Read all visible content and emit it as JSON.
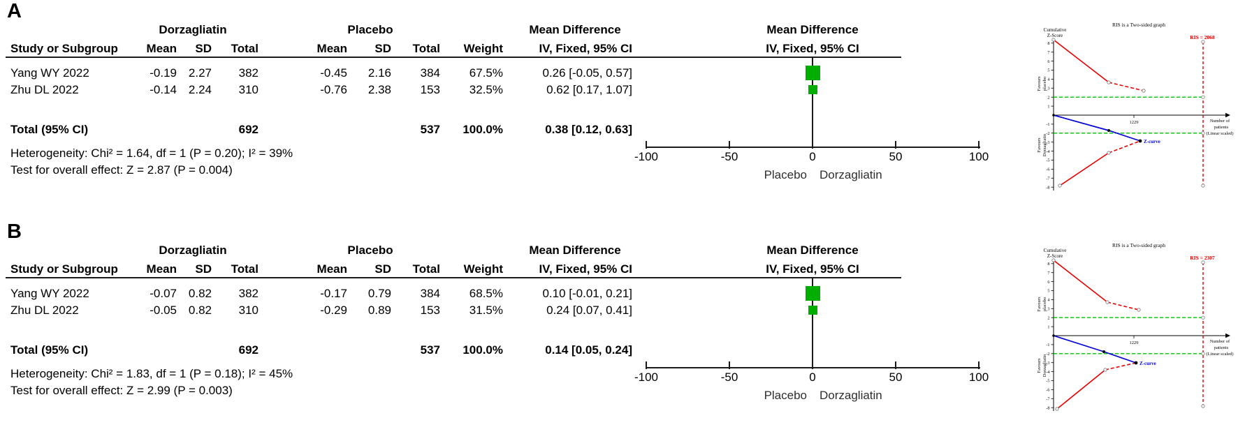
{
  "panelA": {
    "label": "A",
    "table": {
      "groups": {
        "treatment": "Dorzagliatin",
        "control": "Placebo",
        "effect": "Mean Difference"
      },
      "columns": [
        "Study or Subgroup",
        "Mean",
        "SD",
        "Total",
        "Mean",
        "SD",
        "Total",
        "Weight",
        "IV, Fixed, 95% CI"
      ],
      "rows": [
        {
          "study": "Yang WY 2022",
          "t_mean": "-0.19",
          "t_sd": "2.27",
          "t_total": "382",
          "c_mean": "-0.45",
          "c_sd": "2.16",
          "c_total": "384",
          "weight": "67.5%",
          "ci": "0.26 [-0.05, 0.57]"
        },
        {
          "study": "Zhu DL 2022",
          "t_mean": "-0.14",
          "t_sd": "2.24",
          "t_total": "310",
          "c_mean": "-0.76",
          "c_sd": "2.38",
          "c_total": "153",
          "weight": "32.5%",
          "ci": "0.62 [0.17, 1.07]"
        }
      ],
      "total": {
        "label": "Total (95% CI)",
        "t_total": "692",
        "c_total": "537",
        "weight": "100.0%",
        "ci": "0.38 [0.12, 0.63]"
      },
      "heterogeneity": "Heterogeneity: Chi² = 1.64, df = 1 (P = 0.20); I² = 39%",
      "overall": "Test for overall effect: Z = 2.87 (P = 0.004)"
    },
    "forest": {
      "header_line1": "Mean Difference",
      "header_line2": "IV, Fixed, 95% CI",
      "axis_ticks": [
        "-100",
        "-50",
        "0",
        "50",
        "100"
      ],
      "left_label": "Placebo",
      "right_label": "Dorzagliatin"
    },
    "tsa": {
      "title": "RIS is a Two-sided graph",
      "ris_label": "RIS = 2068",
      "y_label_line1": "Cumulative",
      "y_label_line2": "Z-Score",
      "x_tick": "1229",
      "x_label_lines": [
        "Number of",
        "patients",
        "(Linear scaled)"
      ],
      "z_curve_label": "Z-curve",
      "favours_top": [
        "Favours",
        "placebo"
      ],
      "favours_bottom": [
        "Favours",
        "Dorzagliatin"
      ]
    }
  },
  "panelB": {
    "label": "B",
    "table": {
      "groups": {
        "treatment": "Dorzagliatin",
        "control": "Placebo",
        "effect": "Mean Difference"
      },
      "columns": [
        "Study or Subgroup",
        "Mean",
        "SD",
        "Total",
        "Mean",
        "SD",
        "Total",
        "Weight",
        "IV, Fixed, 95% CI"
      ],
      "rows": [
        {
          "study": "Yang WY 2022",
          "t_mean": "-0.07",
          "t_sd": "0.82",
          "t_total": "382",
          "c_mean": "-0.17",
          "c_sd": "0.79",
          "c_total": "384",
          "weight": "68.5%",
          "ci": "0.10 [-0.01, 0.21]"
        },
        {
          "study": "Zhu DL 2022",
          "t_mean": "-0.05",
          "t_sd": "0.82",
          "t_total": "310",
          "c_mean": "-0.29",
          "c_sd": "0.89",
          "c_total": "153",
          "weight": "31.5%",
          "ci": "0.24 [0.07, 0.41]"
        }
      ],
      "total": {
        "label": "Total (95% CI)",
        "t_total": "692",
        "c_total": "537",
        "weight": "100.0%",
        "ci": "0.14 [0.05, 0.24]"
      },
      "heterogeneity": "Heterogeneity: Chi² = 1.83, df = 1 (P = 0.18); I² = 45%",
      "overall": "Test for overall effect: Z = 2.99 (P = 0.003)"
    },
    "forest": {
      "header_line1": "Mean Difference",
      "header_line2": "IV, Fixed, 95% CI",
      "axis_ticks": [
        "-100",
        "-50",
        "0",
        "50",
        "100"
      ],
      "left_label": "Placebo",
      "right_label": "Dorzagliatin"
    },
    "tsa": {
      "title": "RIS is a Two-sided graph",
      "ris_label": "RIS = 2307",
      "y_label_line1": "Cumulative",
      "y_label_line2": "Z-Score",
      "x_tick": "1229",
      "x_label_lines": [
        "Number of",
        "patients",
        "(Linear scaled)"
      ],
      "z_curve_label": "Z-curve",
      "favours_top": [
        "Favours",
        "placebo"
      ],
      "favours_bottom": [
        "Favours",
        "Dorzagliatin"
      ]
    }
  },
  "colors": {
    "marker_green": "#00AE00",
    "boundary_red": "#E60000",
    "significance_green": "#00BF00",
    "z_curve_blue": "#0000D6"
  },
  "chart_data": [
    {
      "panel": "A",
      "forest": {
        "type": "forest",
        "effect_measure": "Mean Difference IV, Fixed, 95% CI",
        "xlim": [
          -100,
          100
        ],
        "x_ticks": [
          -100,
          -50,
          0,
          50,
          100
        ],
        "x_left_label": "Placebo",
        "x_right_label": "Dorzagliatin",
        "studies": [
          {
            "name": "Yang WY 2022",
            "md": 0.26,
            "ci_low": -0.05,
            "ci_high": 0.57,
            "weight_pct": 67.5
          },
          {
            "name": "Zhu DL 2022",
            "md": 0.62,
            "ci_low": 0.17,
            "ci_high": 1.07,
            "weight_pct": 32.5
          }
        ],
        "total": {
          "md": 0.38,
          "ci_low": 0.12,
          "ci_high": 0.63
        }
      },
      "tsa": {
        "type": "line",
        "title": "RIS is a Two-sided graph",
        "ris": 2068,
        "ylabel": "Cumulative Z-Score",
        "xlabel": "Number of patients (Linear scaled)",
        "ylim": [
          -8,
          8
        ],
        "y_ticks": [
          8,
          7,
          6,
          5,
          4,
          3,
          2,
          1,
          -1,
          -2,
          -3,
          -4,
          -5,
          -6,
          -7,
          -8
        ],
        "x_tick_value": 1229,
        "significance_boundaries_z": [
          2,
          -2
        ],
        "upper_monitoring_boundary_z": [
          8.3,
          3.6,
          2.7
        ],
        "lower_monitoring_boundary_z": [
          -7.9,
          -4.1,
          -2.9
        ],
        "z_curve_z": [
          0,
          -1.7,
          -2.8
        ]
      }
    },
    {
      "panel": "B",
      "forest": {
        "type": "forest",
        "effect_measure": "Mean Difference IV, Fixed, 95% CI",
        "xlim": [
          -100,
          100
        ],
        "x_ticks": [
          -100,
          -50,
          0,
          50,
          100
        ],
        "x_left_label": "Placebo",
        "x_right_label": "Dorzagliatin",
        "studies": [
          {
            "name": "Yang WY 2022",
            "md": 0.1,
            "ci_low": -0.01,
            "ci_high": 0.21,
            "weight_pct": 68.5
          },
          {
            "name": "Zhu DL 2022",
            "md": 0.24,
            "ci_low": 0.07,
            "ci_high": 0.41,
            "weight_pct": 31.5
          }
        ],
        "total": {
          "md": 0.14,
          "ci_low": 0.05,
          "ci_high": 0.24
        }
      },
      "tsa": {
        "type": "line",
        "title": "RIS is a Two-sided graph",
        "ris": 2307,
        "ylabel": "Cumulative Z-Score",
        "xlabel": "Number of patients (Linear scaled)",
        "ylim": [
          -8,
          8
        ],
        "y_ticks": [
          8,
          7,
          6,
          5,
          4,
          3,
          2,
          1,
          -1,
          -2,
          -3,
          -4,
          -5,
          -6,
          -7,
          -8
        ],
        "x_tick_value": 1229,
        "significance_boundaries_z": [
          2,
          -2
        ],
        "upper_monitoring_boundary_z": [
          8.3,
          3.7,
          2.9
        ],
        "lower_monitoring_boundary_z": [
          -8.2,
          -3.8,
          -3.0
        ],
        "z_curve_z": [
          0,
          -1.8,
          -3.0
        ]
      }
    }
  ]
}
